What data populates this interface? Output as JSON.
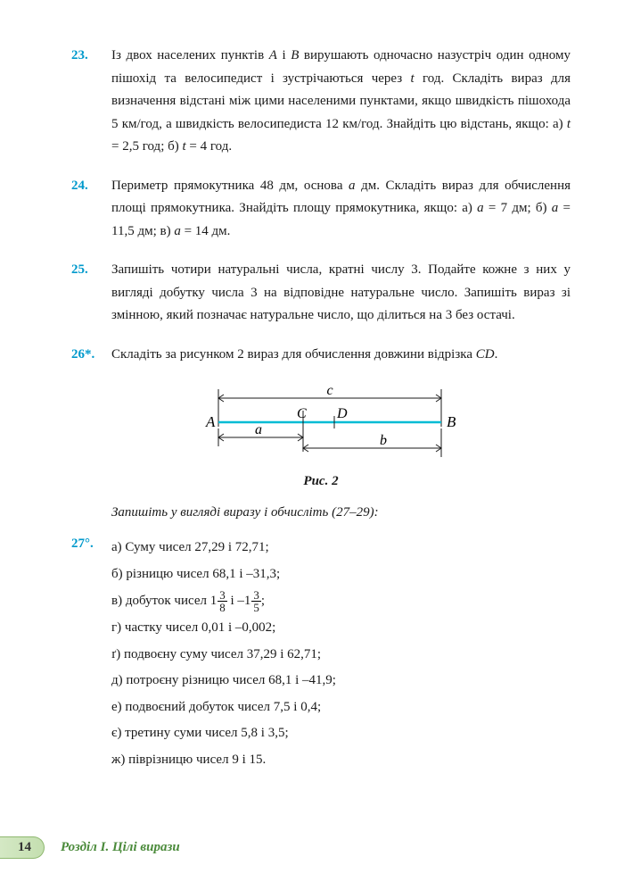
{
  "problems": {
    "p23": {
      "num": "23.",
      "text": "Із двох населених пунктів <i>A</i> і <i>B</i> вирушають одночасно назустріч один одному пішохід та велосипедист і зустрічаються через <i>t</i> год. Складіть вираз для визначення відстані між цими населеними пунктами, якщо швидкість пішохода 5 км/год, а швидкість велосипедиста 12 км/год. Знайдіть цю відстань, якщо: а) <i>t</i> = 2,5 год; б) <i>t</i> = 4 год."
    },
    "p24": {
      "num": "24.",
      "text": "Периметр прямокутника 48 дм, основа <i>a</i> дм. Складіть вираз для обчислення площі прямокутника. Знайдіть площу прямокутника, якщо: а) <i>a</i> = 7 дм; б) <i>a</i> = 11,5 дм; в) <i>a</i> = 14 дм."
    },
    "p25": {
      "num": "25.",
      "text": "Запишіть чотири натуральні числа, кратні числу 3. Подайте кожне з них у вигляді добутку числа 3 на відповідне натуральне число. Запишіть вираз зі змінною, який позначає натуральне число, що ділиться на 3 без остачі."
    },
    "p26": {
      "num": "26*.",
      "text": "Складіть за рисунком 2 вираз для обчислення довжини відрізка <i>CD</i>."
    },
    "p27": {
      "num": "27°.",
      "a": "а) Суму чисел 27,29 і 72,71;",
      "b": "б) різницю чисел 68,1 і –31,3;",
      "v_pre": "в) добуток чисел ",
      "v_w1": "1",
      "v_n1": "3",
      "v_d1": "8",
      "v_mid": " і ",
      "v_w2": "–1",
      "v_n2": "3",
      "v_d2": "5",
      "v_post": ";",
      "g": "г) частку чисел 0,01 і –0,002;",
      "gg": "ґ) подвоєну суму чисел 37,29 і 62,71;",
      "d": "д) потроєну різницю чисел 68,1 і –41,9;",
      "e": "е) подвоєний добуток чисел 7,5 і 0,4;",
      "ye": "є) третину суми чисел 5,8 і 3,5;",
      "zh": "ж) піврізницю чисел 9 і 15."
    }
  },
  "instruction": "Запишіть у вигляді виразу і обчисліть (27–29):",
  "figure": {
    "caption": "Рис. 2",
    "labels": {
      "A": "A",
      "B": "B",
      "C": "C",
      "D": "D",
      "a": "a",
      "b": "b",
      "c": "c"
    },
    "colors": {
      "main_line": "#00bcd4",
      "tick": "#1a1a1a",
      "arrow": "#1a1a1a",
      "text": "#1a1a1a"
    }
  },
  "footer": {
    "page": "14",
    "chapter": "Розділ I. Цілі вирази"
  }
}
